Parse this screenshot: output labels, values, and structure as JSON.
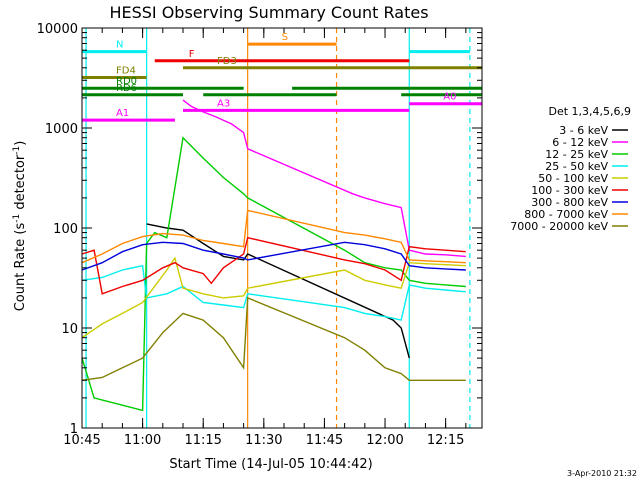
{
  "chart_data": {
    "type": "line",
    "title": "HESSI Observing Summary Count Rates",
    "xlabel": "Start Time (14-Jul-05 10:44:42)",
    "ylabel": "Count Rate (s",
    "ylabel_sup": "-1",
    "ylabel_mid": " detector",
    "ylabel_end": ")",
    "yscale": "log",
    "xlim": [
      "10:45",
      "12:24"
    ],
    "ylim": [
      1,
      10000
    ],
    "x_ticks": [
      "10:45",
      "11:00",
      "11:15",
      "11:30",
      "11:45",
      "12:00",
      "12:15"
    ],
    "y_ticks": [
      "1",
      "10",
      "100",
      "1000",
      "10000"
    ],
    "timestamp": "3-Apr-2010 21:32",
    "legend_title": "Det 1,3,4,5,6,9",
    "legend_position": "right",
    "series": [
      {
        "name": "3 - 6 keV",
        "color": "#000000",
        "points": [
          [
            "11:01",
            110
          ],
          [
            "11:06",
            100
          ],
          [
            "11:10",
            95
          ],
          [
            "11:15",
            70
          ],
          [
            "11:20",
            52
          ],
          [
            "11:25",
            48
          ],
          [
            "11:26",
            55
          ],
          [
            "12:02",
            12
          ],
          [
            "12:04",
            10
          ],
          [
            "12:06",
            5
          ]
        ]
      },
      {
        "name": "6 - 12 keV",
        "color": "#ff00ff",
        "points": [
          [
            "11:10",
            1900
          ],
          [
            "11:12",
            1650
          ],
          [
            "11:15",
            1450
          ],
          [
            "11:18",
            1300
          ],
          [
            "11:22",
            1100
          ],
          [
            "11:25",
            900
          ],
          [
            "11:26",
            620
          ],
          [
            "11:52",
            220
          ],
          [
            "11:55",
            200
          ],
          [
            "12:00",
            175
          ],
          [
            "12:04",
            160
          ],
          [
            "12:06",
            60
          ],
          [
            "12:10",
            55
          ],
          [
            "12:15",
            54
          ],
          [
            "12:20",
            52
          ]
        ]
      },
      {
        "name": "12 - 25 keV",
        "color": "#00cc00",
        "points": [
          [
            "10:45",
            5
          ],
          [
            "10:48",
            2
          ],
          [
            "11:00",
            1.5
          ],
          [
            "11:01",
            70
          ],
          [
            "11:03",
            90
          ],
          [
            "11:06",
            80
          ],
          [
            "11:10",
            800
          ],
          [
            "11:15",
            500
          ],
          [
            "11:20",
            320
          ],
          [
            "11:25",
            220
          ],
          [
            "11:26",
            200
          ],
          [
            "11:50",
            60
          ],
          [
            "11:55",
            45
          ],
          [
            "12:00",
            40
          ],
          [
            "12:04",
            38
          ],
          [
            "12:06",
            30
          ],
          [
            "12:10",
            28
          ],
          [
            "12:15",
            27
          ],
          [
            "12:20",
            26
          ]
        ]
      },
      {
        "name": "25 - 50 keV",
        "color": "#00eeee",
        "points": [
          [
            "10:45",
            30
          ],
          [
            "10:50",
            32
          ],
          [
            "10:55",
            38
          ],
          [
            "11:00",
            42
          ],
          [
            "11:01",
            20
          ],
          [
            "11:06",
            22
          ],
          [
            "11:10",
            26
          ],
          [
            "11:15",
            18
          ],
          [
            "11:20",
            17
          ],
          [
            "11:25",
            16
          ],
          [
            "11:26",
            22
          ],
          [
            "11:50",
            16
          ],
          [
            "11:55",
            14
          ],
          [
            "12:00",
            13
          ],
          [
            "12:04",
            12
          ],
          [
            "12:06",
            27
          ],
          [
            "12:10",
            25
          ],
          [
            "12:15",
            24
          ],
          [
            "12:20",
            23
          ]
        ]
      },
      {
        "name": "50 - 100 keV",
        "color": "#cccc00",
        "points": [
          [
            "10:45",
            8
          ],
          [
            "10:50",
            11
          ],
          [
            "10:55",
            14
          ],
          [
            "11:00",
            18
          ],
          [
            "11:06",
            38
          ],
          [
            "11:08",
            50
          ],
          [
            "11:10",
            25
          ],
          [
            "11:15",
            22
          ],
          [
            "11:20",
            20
          ],
          [
            "11:25",
            21
          ],
          [
            "11:26",
            25
          ],
          [
            "11:50",
            38
          ],
          [
            "11:55",
            30
          ],
          [
            "12:00",
            27
          ],
          [
            "12:04",
            25
          ],
          [
            "12:06",
            45
          ],
          [
            "12:10",
            44
          ],
          [
            "12:15",
            43
          ],
          [
            "12:20",
            42
          ]
        ]
      },
      {
        "name": "100 - 300 keV",
        "color": "#ee0000",
        "points": [
          [
            "10:45",
            55
          ],
          [
            "10:48",
            60
          ],
          [
            "10:50",
            22
          ],
          [
            "10:55",
            26
          ],
          [
            "11:00",
            30
          ],
          [
            "11:05",
            40
          ],
          [
            "11:08",
            45
          ],
          [
            "11:10",
            40
          ],
          [
            "11:15",
            35
          ],
          [
            "11:17",
            28
          ],
          [
            "11:20",
            40
          ],
          [
            "11:25",
            55
          ],
          [
            "11:26",
            80
          ],
          [
            "11:50",
            48
          ],
          [
            "11:55",
            44
          ],
          [
            "12:00",
            38
          ],
          [
            "12:04",
            30
          ],
          [
            "12:06",
            65
          ],
          [
            "12:10",
            62
          ],
          [
            "12:15",
            60
          ],
          [
            "12:20",
            58
          ]
        ]
      },
      {
        "name": "300 - 800 keV",
        "color": "#0000dd",
        "points": [
          [
            "10:45",
            38
          ],
          [
            "10:50",
            45
          ],
          [
            "10:55",
            58
          ],
          [
            "11:00",
            68
          ],
          [
            "11:05",
            72
          ],
          [
            "11:10",
            70
          ],
          [
            "11:15",
            60
          ],
          [
            "11:20",
            55
          ],
          [
            "11:25",
            50
          ],
          [
            "11:26",
            48
          ],
          [
            "11:50",
            72
          ],
          [
            "11:55",
            68
          ],
          [
            "12:00",
            62
          ],
          [
            "12:04",
            55
          ],
          [
            "12:06",
            42
          ],
          [
            "12:10",
            40
          ],
          [
            "12:15",
            39
          ],
          [
            "12:20",
            38
          ]
        ]
      },
      {
        "name": "800 - 7000 keV",
        "color": "#ff8800",
        "points": [
          [
            "10:45",
            45
          ],
          [
            "10:50",
            55
          ],
          [
            "10:55",
            70
          ],
          [
            "11:00",
            82
          ],
          [
            "11:05",
            88
          ],
          [
            "11:10",
            85
          ],
          [
            "11:15",
            75
          ],
          [
            "11:20",
            70
          ],
          [
            "11:25",
            65
          ],
          [
            "11:26",
            150
          ],
          [
            "11:50",
            90
          ],
          [
            "11:55",
            85
          ],
          [
            "12:00",
            78
          ],
          [
            "12:04",
            72
          ],
          [
            "12:06",
            48
          ],
          [
            "12:10",
            47
          ],
          [
            "12:15",
            46
          ],
          [
            "12:20",
            45
          ]
        ]
      },
      {
        "name": "7000 - 20000 keV",
        "color": "#808000",
        "points": [
          [
            "10:45",
            3
          ],
          [
            "10:50",
            3.2
          ],
          [
            "10:55",
            4
          ],
          [
            "11:00",
            5
          ],
          [
            "11:05",
            9
          ],
          [
            "11:10",
            14
          ],
          [
            "11:15",
            12
          ],
          [
            "11:20",
            8
          ],
          [
            "11:25",
            4
          ],
          [
            "11:26",
            20
          ],
          [
            "11:50",
            8
          ],
          [
            "11:55",
            6
          ],
          [
            "12:00",
            4
          ],
          [
            "12:04",
            3.5
          ],
          [
            "12:06",
            3
          ],
          [
            "12:10",
            3
          ],
          [
            "12:15",
            3
          ],
          [
            "12:20",
            3
          ]
        ]
      }
    ],
    "flag_bars": [
      {
        "label": "N",
        "color": "#00eeee",
        "value": 5800,
        "segments": [
          [
            "10:45",
            "11:01"
          ],
          [
            "12:06",
            "12:21"
          ]
        ]
      },
      {
        "label": "S",
        "color": "#ff8800",
        "value": 6900,
        "segments": [
          [
            "11:26",
            "11:48"
          ]
        ]
      },
      {
        "label": "F",
        "color": "#ee0000",
        "value": 4700,
        "segments": [
          [
            "11:03",
            "12:06"
          ]
        ]
      },
      {
        "label": "FD3",
        "color": "#808000",
        "value": 4000,
        "segments": [
          [
            "11:10",
            "12:24"
          ]
        ]
      },
      {
        "label": "FD4",
        "color": "#808000",
        "value": 3200,
        "segments": [
          [
            "10:45",
            "11:01"
          ]
        ]
      },
      {
        "label": "RD0",
        "color": "#008000",
        "value": 2500,
        "segments": [
          [
            "10:45",
            "11:25"
          ],
          [
            "11:37",
            "12:24"
          ]
        ]
      },
      {
        "label": "RD6",
        "color": "#008000",
        "value": 2150,
        "segments": [
          [
            "10:45",
            "11:10"
          ],
          [
            "11:15",
            "11:48"
          ],
          [
            "12:04",
            "12:24"
          ]
        ]
      },
      {
        "label": "A1",
        "color": "#ff00ff",
        "value": 1200,
        "segments": [
          [
            "10:45",
            "11:08"
          ]
        ]
      },
      {
        "label": "A3",
        "color": "#ff00ff",
        "value": 1500,
        "segments": [
          [
            "11:10",
            "12:06"
          ]
        ]
      },
      {
        "label": "A0",
        "color": "#ff00ff",
        "value": 1750,
        "segments": [
          [
            "12:06",
            "12:24"
          ]
        ]
      }
    ],
    "vlines": [
      {
        "time": "10:46",
        "color": "#00eeee",
        "style": "solid"
      },
      {
        "time": "11:01",
        "color": "#00eeee",
        "style": "solid"
      },
      {
        "time": "11:26",
        "color": "#ff8800",
        "style": "solid"
      },
      {
        "time": "11:48",
        "color": "#ff8800",
        "style": "dashed"
      },
      {
        "time": "12:06",
        "color": "#00eeee",
        "style": "solid"
      },
      {
        "time": "12:21",
        "color": "#00eeee",
        "style": "dashed"
      }
    ]
  }
}
